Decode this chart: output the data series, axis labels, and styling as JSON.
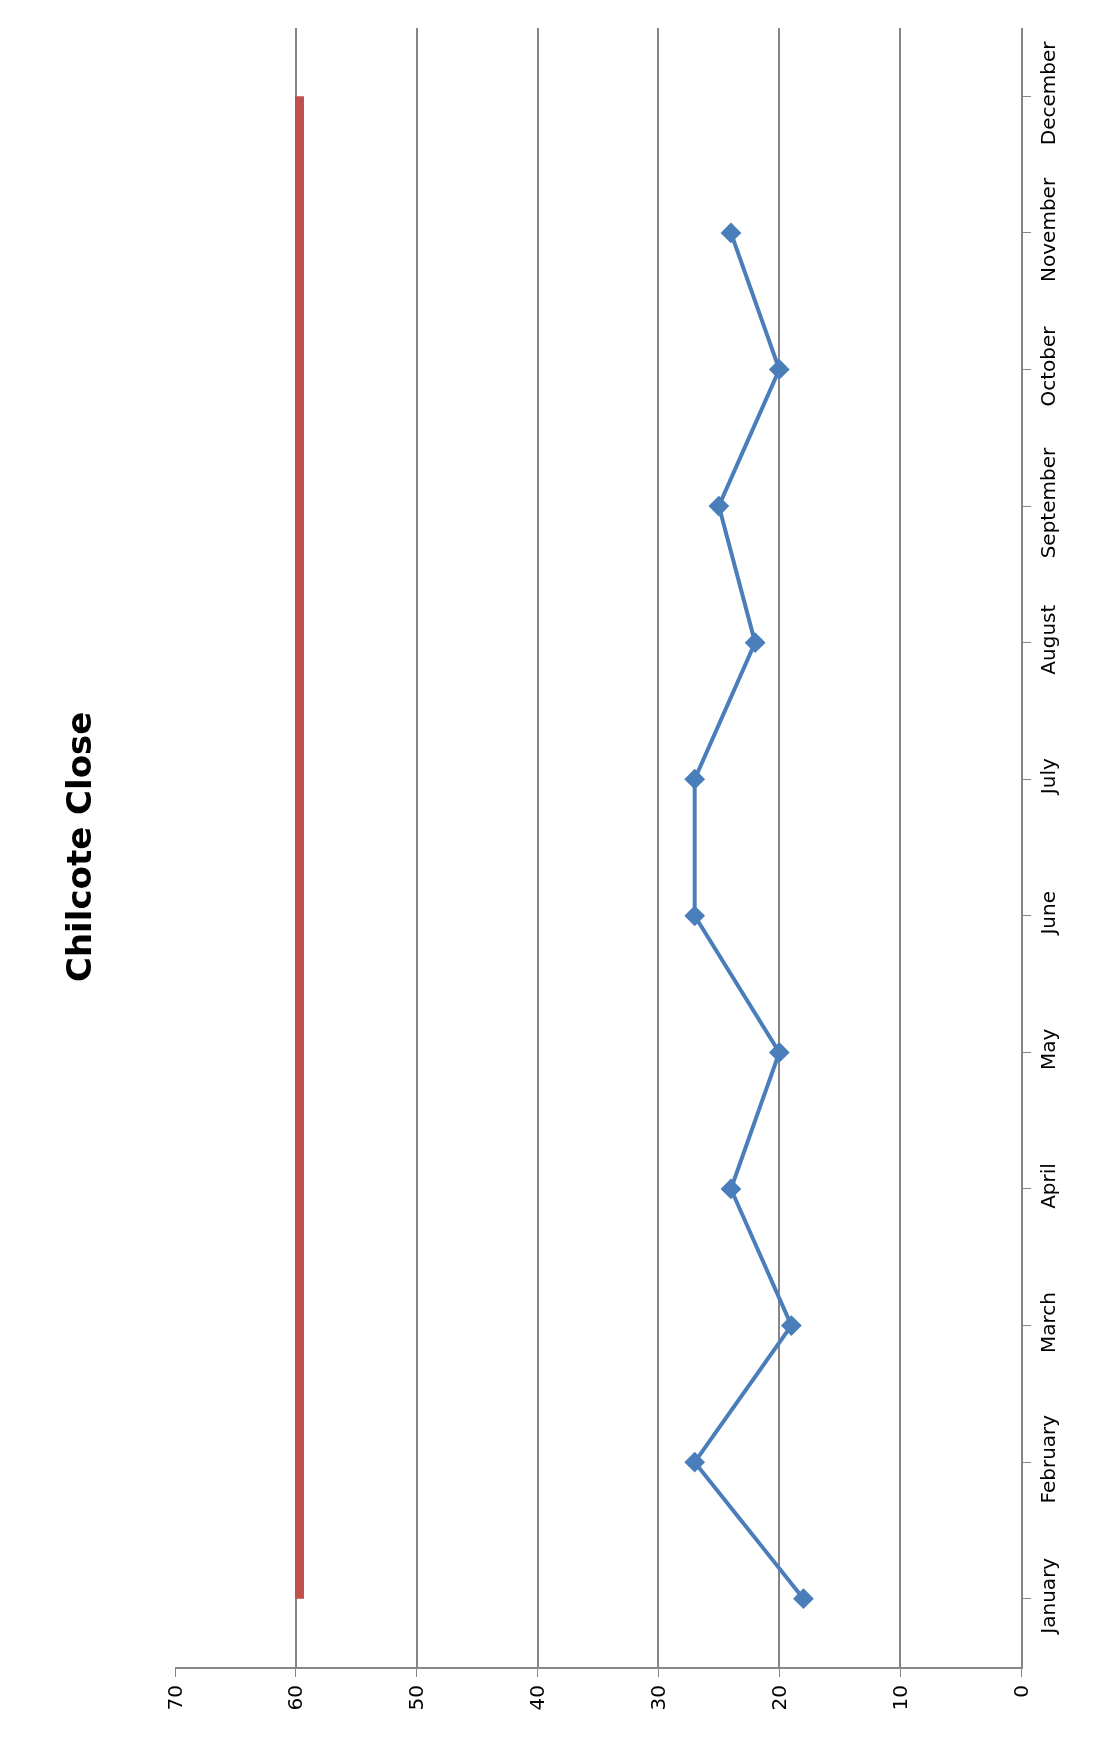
{
  "chart_data": {
    "type": "line",
    "orientation": "horizontal",
    "title": "Chilcote Close",
    "categories": [
      "December",
      "November",
      "October",
      "September",
      "August",
      "July",
      "June",
      "May",
      "April",
      "March",
      "February",
      "January"
    ],
    "series": [
      {
        "color": "#4a7ebb",
        "marker": "diamond",
        "values": [
          null,
          24,
          20,
          25,
          22,
          27,
          27,
          20,
          24,
          19,
          27,
          18
        ]
      },
      {
        "color": "#c0504d",
        "marker": "none",
        "values": [
          59.7,
          59.7,
          59.7,
          59.7,
          59.7,
          59.7,
          59.7,
          59.7,
          59.7,
          59.7,
          59.7,
          59.7
        ]
      }
    ],
    "xlim": [
      70,
      0
    ],
    "xticks": [
      0,
      10,
      20,
      30,
      40,
      50,
      60,
      70
    ],
    "grid": "x"
  }
}
